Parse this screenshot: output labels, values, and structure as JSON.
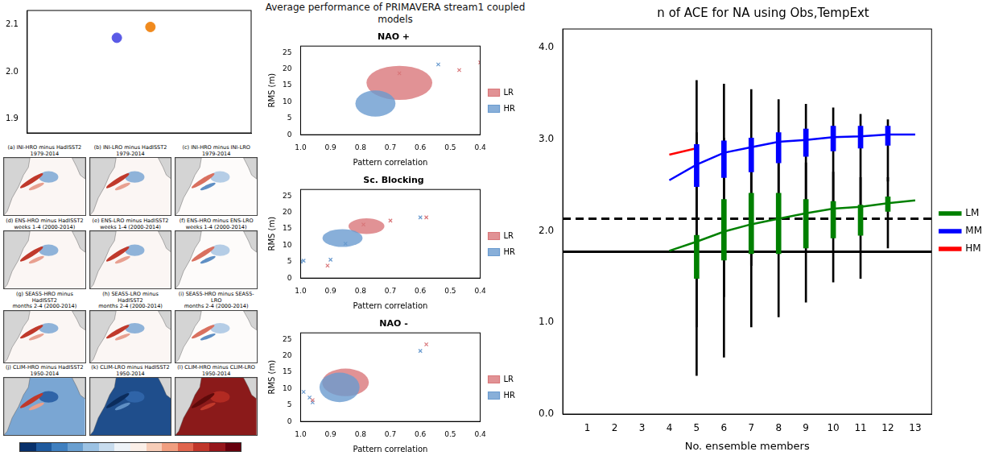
{
  "chart_data": [
    {
      "type": "scatter",
      "x": [
        0.4,
        0.55
      ],
      "values": [
        2.072,
        2.095
      ],
      "colors": [
        "#5a5ae6",
        "#f08a1e"
      ],
      "xlim": [
        0,
        1
      ],
      "ylim": [
        1.87,
        2.13
      ],
      "yticks": [
        1.9,
        {
          "value": 2,
          "label": "2.0"
        },
        2.1
      ],
      "tick_labels": "y",
      "grid": false,
      "marker": "circle"
    },
    {
      "type": "scatter_group",
      "title": "Average performance of PRIMAVERA stream1 coupled models",
      "panels": [
        {
          "type": "scatter",
          "title": "NAO +",
          "x_label": "Pattern correlation",
          "y_label": "RMS (m)",
          "xlim": [
            1.0,
            0.4
          ],
          "xticks": [
            {
              "value": 1,
              "label": "1.0"
            },
            0.9,
            0.8,
            0.7,
            0.6,
            0.5,
            0.4
          ],
          "ylim": [
            0,
            27
          ],
          "yticks": [
            0,
            5,
            10,
            15,
            20,
            25
          ],
          "legend": "right",
          "grid": false,
          "series": [
            {
              "name": "LR",
              "color": "#d9777a",
              "marker": "x",
              "x": [
                0.4,
                0.47,
                0.67
              ],
              "values": [
                22,
                19.7,
                18.7
              ]
            },
            {
              "name": "HR",
              "color": "#6a9bcf",
              "marker": "x",
              "x": [
                0.54
              ],
              "values": [
                21.4
              ]
            }
          ],
          "ellipses": [
            {
              "series": "LR",
              "x": 0.67,
              "y": 15.8,
              "x_radius": 0.11,
              "y_radius": 5.2
            },
            {
              "series": "HR",
              "x": 0.75,
              "y": 9.5,
              "x_radius": 0.067,
              "y_radius": 4
            }
          ]
        },
        {
          "type": "scatter",
          "title": "Sc. Blocking",
          "x_label": "Pattern correlation",
          "y_label": "RMS (m)",
          "xlim": [
            1.0,
            0.4
          ],
          "xticks": [
            {
              "value": 1,
              "label": "1.0"
            },
            0.9,
            0.8,
            0.7,
            0.6,
            0.5,
            0.4
          ],
          "ylim": [
            0,
            27
          ],
          "yticks": [
            0,
            5,
            10,
            15,
            20,
            25
          ],
          "legend": "right",
          "grid": false,
          "series": [
            {
              "name": "LR",
              "color": "#d9777a",
              "marker": "x",
              "x": [
                0.91,
                0.79,
                0.7,
                0.58
              ],
              "values": [
                3.8,
                16.3,
                17.5,
                18.5
              ]
            },
            {
              "name": "HR",
              "color": "#6a9bcf",
              "marker": "x",
              "x": [
                1.0,
                0.99,
                0.9,
                0.85,
                0.6
              ],
              "values": [
                5.0,
                5.3,
                5.6,
                10.5,
                18.5
              ]
            }
          ],
          "ellipses": [
            {
              "series": "LR",
              "x": 0.78,
              "y": 15.8,
              "x_radius": 0.06,
              "y_radius": 2.4
            },
            {
              "series": "HR",
              "x": 0.86,
              "y": 12.2,
              "x_radius": 0.067,
              "y_radius": 2.7
            }
          ]
        },
        {
          "type": "scatter",
          "title": "NAO -",
          "x_label": "Pattern correlation",
          "y_label": "RMS (m)",
          "xlim": [
            1.0,
            0.4
          ],
          "xticks": [
            {
              "value": 1,
              "label": "1.0"
            },
            0.9,
            0.8,
            0.7,
            0.6,
            0.5,
            0.4
          ],
          "ylim": [
            0,
            27
          ],
          "yticks": [
            0,
            5,
            10,
            15,
            20,
            25
          ],
          "legend": "right",
          "grid": false,
          "series": [
            {
              "name": "LR",
              "color": "#d9777a",
              "marker": "x",
              "x": [
                0.58,
                0.96
              ],
              "values": [
                23.5,
                6.5
              ]
            },
            {
              "name": "HR",
              "color": "#6a9bcf",
              "marker": "x",
              "x": [
                0.6,
                0.99,
                0.97,
                0.96
              ],
              "values": [
                21.5,
                9,
                7.3,
                5.8
              ]
            }
          ],
          "ellipses": [
            {
              "series": "LR",
              "x": 0.85,
              "y": 11.9,
              "x_radius": 0.078,
              "y_radius": 4.2
            },
            {
              "series": "HR",
              "x": 0.87,
              "y": 10.4,
              "x_radius": 0.067,
              "y_radius": 4.5
            }
          ]
        }
      ]
    },
    {
      "type": "map_grid",
      "panels": [
        {
          "title": "(a) INI-HRO minus HadISST2",
          "period": "1979-2014"
        },
        {
          "title": "(b) INI-LRO minus HadISST2",
          "period": "1979-2014"
        },
        {
          "title": "(c) INI-HRO minus INI-LRO",
          "period": "1979-2014"
        },
        {
          "title": "(d) ENS-HRO minus HadISST2",
          "period": "weeks 1-4 (2000-2014)"
        },
        {
          "title": "(e) ENS-LRO minus HadISST2",
          "period": "weeks 1-4 (2000-2014)"
        },
        {
          "title": "(f) ENS-HRO minus ENS-LRO",
          "period": "weeks 1-4 (2000-2014)"
        },
        {
          "title": "(g) SEAS5-HRO minus HadISST2",
          "period": "months 2-4 (2000-2014)"
        },
        {
          "title": "(h) SEAS5-LRO minus HadISST2",
          "period": "months 2-4 (2000-2014)"
        },
        {
          "title": "(i) SEAS5-HRO minus SEAS5-LRO",
          "period": "months 2-4 (2000-2014)"
        },
        {
          "title": "(j) CLIM-HRO minus HadISST2",
          "period": "1950-2014"
        },
        {
          "title": "(k) CLIM-LRO minus HadISST2",
          "period": "1950-2014"
        },
        {
          "title": "(l) CLIM-HRO minus CLIM-LRO",
          "period": "1950-2014"
        }
      ]
    },
    {
      "type": "line",
      "title": "n of ACE for NA using Obs,TempExt",
      "x_label": "No. ensemble members",
      "xlim": [
        0.1,
        13.6
      ],
      "xticks": [
        1,
        2,
        3,
        4,
        5,
        6,
        7,
        8,
        9,
        10,
        11,
        12,
        13
      ],
      "ylim": [
        0,
        4.2
      ],
      "yticks": [
        {
          "value": 0,
          "label": "0.0"
        },
        {
          "value": 1,
          "label": "1.0"
        },
        {
          "value": 2,
          "label": "2.0"
        },
        {
          "value": 3,
          "label": "3.0"
        },
        {
          "value": 4,
          "label": "4.0"
        }
      ],
      "legend": "right",
      "grid": false,
      "series": [
        {
          "name": "LM",
          "color": "#008000",
          "x": [
            4,
            5,
            6,
            7,
            8,
            9,
            10,
            11,
            12,
            13
          ],
          "values": [
            1.78,
            1.88,
            1.99,
            2.07,
            2.13,
            2.19,
            2.24,
            2.26,
            2.3,
            2.33
          ],
          "boxes": [
            {
              "x": 5,
              "whisker": [
                0.42,
                3.07
              ],
              "box": [
                1.48,
                1.95
              ]
            },
            {
              "x": 6,
              "whisker": [
                0.62,
                3.01
              ],
              "box": [
                1.68,
                2.34
              ]
            },
            {
              "x": 7,
              "whisker": [
                0.95,
                2.9
              ],
              "box": [
                1.75,
                2.41
              ]
            },
            {
              "x": 8,
              "whisker": [
                1.06,
                2.81
              ],
              "box": [
                1.75,
                2.41
              ]
            },
            {
              "x": 9,
              "whisker": [
                1.22,
                2.74
              ],
              "box": [
                1.81,
                2.34
              ]
            },
            {
              "x": 10,
              "whisker": [
                1.44,
                2.64
              ],
              "box": [
                1.92,
                2.32
              ]
            },
            {
              "x": 11,
              "whisker": [
                1.48,
                2.58
              ],
              "box": [
                1.95,
                2.28
              ]
            },
            {
              "x": 12,
              "whisker": [
                1.81,
                2.58
              ],
              "box": [
                2.21,
                2.37
              ]
            }
          ]
        },
        {
          "name": "MM",
          "color": "#0000ff",
          "x": [
            4,
            5,
            6,
            7,
            8,
            9,
            10,
            11,
            12,
            13
          ],
          "values": [
            2.55,
            2.72,
            2.85,
            2.91,
            2.97,
            2.99,
            3.02,
            3.03,
            3.05,
            3.05
          ],
          "boxes": [
            {
              "x": 5,
              "whisker": [
                0.95,
                3.64
              ],
              "box": [
                2.48,
                2.94
              ]
            },
            {
              "x": 6,
              "whisker": [
                1.28,
                3.6
              ],
              "box": [
                2.58,
                2.98
              ]
            },
            {
              "x": 7,
              "whisker": [
                1.62,
                3.54
              ],
              "box": [
                2.64,
                3.01
              ]
            },
            {
              "x": 8,
              "whisker": [
                1.75,
                3.43
              ],
              "box": [
                2.74,
                3.07
              ]
            },
            {
              "x": 9,
              "whisker": [
                1.97,
                3.38
              ],
              "box": [
                2.81,
                3.11
              ]
            },
            {
              "x": 10,
              "whisker": [
                2.19,
                3.34
              ],
              "box": [
                2.87,
                3.14
              ]
            },
            {
              "x": 11,
              "whisker": [
                2.28,
                3.27
              ],
              "box": [
                2.9,
                3.14
              ]
            },
            {
              "x": 12,
              "whisker": [
                2.54,
                3.21
              ],
              "box": [
                2.93,
                3.14
              ]
            }
          ]
        },
        {
          "name": "HM",
          "color": "#ff0000",
          "x": [
            4,
            5
          ],
          "values": [
            2.83,
            2.9
          ]
        }
      ],
      "reference_lines": [
        {
          "value": 2.13,
          "line_style": "dashed",
          "color": "#000000"
        },
        {
          "value": 1.77,
          "line_style": "solid",
          "color": "#000000"
        }
      ]
    }
  ]
}
